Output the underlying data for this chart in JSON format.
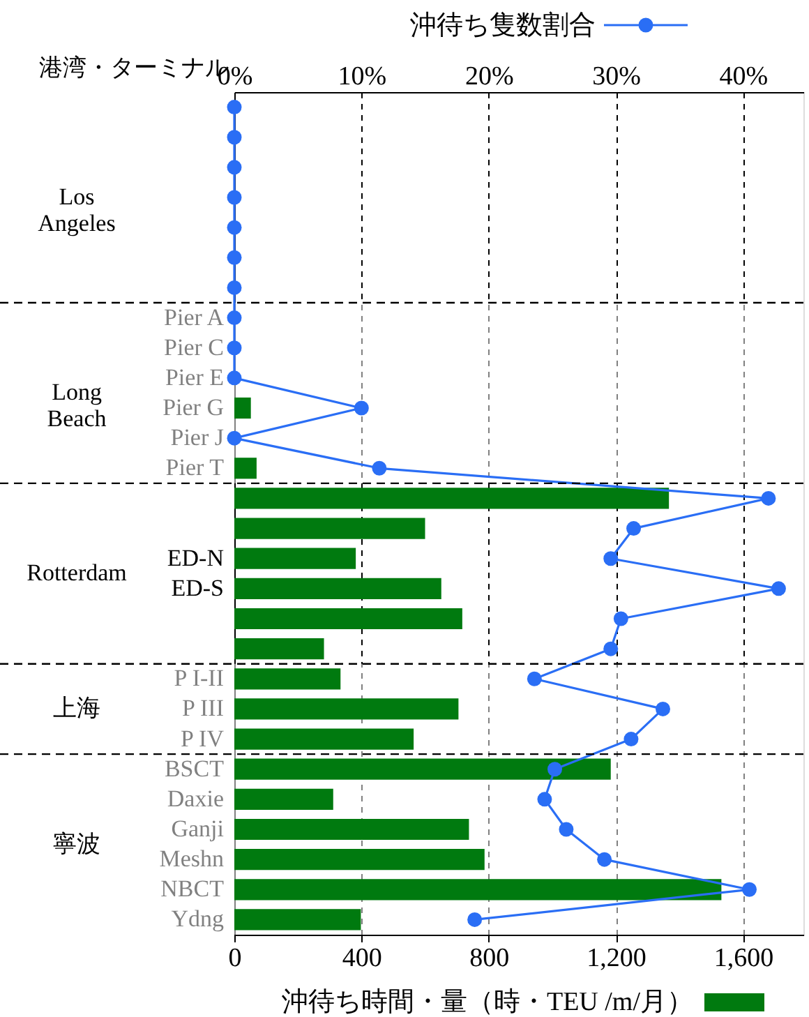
{
  "chart_data": {
    "type": "bar",
    "orientation": "horizontal",
    "ylabel": "港湾・ターミナル",
    "categories": [
      null,
      null,
      null,
      null,
      null,
      null,
      null,
      "Pier A",
      "Pier C",
      "Pier E",
      "Pier G",
      "Pier J",
      "Pier T",
      null,
      null,
      "ED-N",
      "ED-S",
      null,
      null,
      "P I-II",
      "P III",
      "P IV",
      "BSCT",
      "Daxie",
      "Ganji",
      "Meshn",
      "NBCT",
      "Ydng"
    ],
    "series": [
      {
        "name": "沖待ち時間・量（時・TEU /m/月）",
        "color": "#007a0f",
        "values": [
          0,
          0,
          0,
          0,
          0,
          0,
          0,
          0,
          0,
          0,
          52,
          0,
          70,
          1367,
          600,
          382,
          651,
          717,
          282,
          334,
          705,
          564,
          1184,
          311,
          738,
          787,
          1532,
          398
        ]
      },
      {
        "name": "沖待ち隻数割合",
        "type": "line",
        "axis": "x2",
        "color": "#2a6ef5",
        "marker": "circle",
        "line_style": "solid",
        "values": [
          0,
          0,
          0,
          0,
          0,
          0,
          0,
          0,
          0,
          0,
          10.0,
          0,
          11.4,
          42.0,
          31.4,
          29.6,
          42.8,
          30.4,
          29.6,
          23.6,
          33.7,
          31.2,
          25.2,
          24.4,
          26.1,
          29.1,
          40.5,
          18.9
        ]
      }
    ],
    "xlim": [
      0,
      1790
    ],
    "xticks": [
      0,
      400,
      800,
      {
        "value": 1200,
        "label": "1,200"
      },
      {
        "value": 1600,
        "label": "1,600"
      }
    ],
    "x2lim": [
      0,
      44.75
    ],
    "x2ticks": [
      {
        "value": 0,
        "label": "0%"
      },
      {
        "value": 10,
        "label": "10%"
      },
      {
        "value": 20,
        "label": "20%"
      },
      {
        "value": 30,
        "label": "30%"
      },
      {
        "value": 40,
        "label": "40%"
      }
    ],
    "bands": [
      {
        "axis": "y",
        "from": "Pier A",
        "to": "Pier T",
        "label": "Long Beach",
        "color": "#ffffff"
      },
      {
        "axis": "y",
        "from": "P I-II",
        "to": "P IV",
        "label": "上海",
        "color": "#ffffff"
      },
      {
        "axis": "y",
        "from": "BSCT",
        "to": "Ydng",
        "label": "寧波",
        "color": "#ffffff"
      }
    ],
    "annotations": [
      "Los Angeles",
      "Rotterdam"
    ],
    "grid": "x",
    "legend": "top right"
  }
}
